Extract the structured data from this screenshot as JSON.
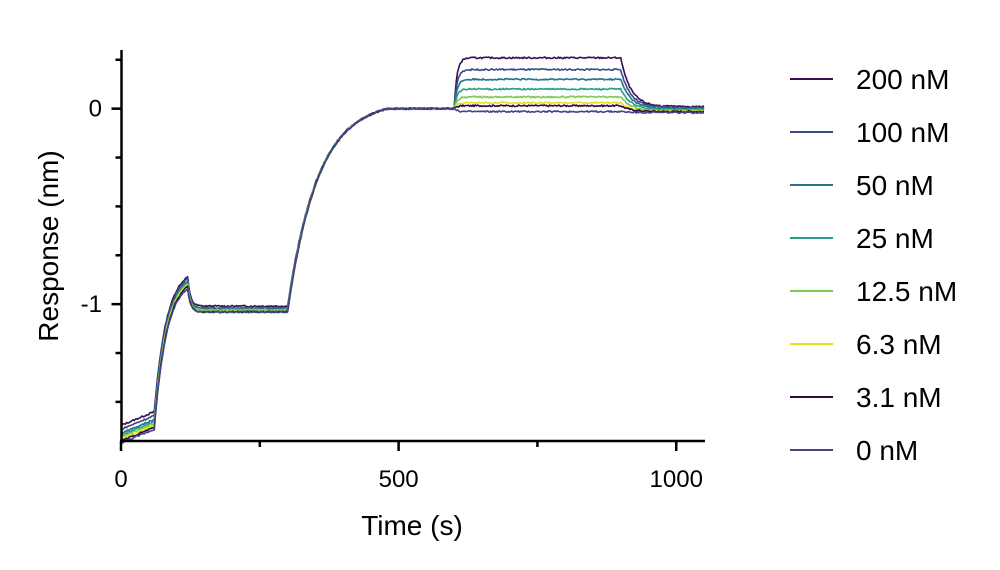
{
  "chart_data": {
    "type": "line",
    "title": "",
    "xlabel": "Time (s)",
    "ylabel": "Response  (nm)",
    "xlim": [
      0,
      1050
    ],
    "ylim": [
      -1.7,
      0.3
    ],
    "x_ticks": [
      0,
      500,
      1000
    ],
    "x_tick_labels": [
      "0",
      "500",
      "1000"
    ],
    "y_ticks": [
      0,
      -1
    ],
    "y_tick_labels": [
      "0",
      "-1"
    ],
    "legend_position": "right",
    "phases_s": [
      0,
      60,
      120,
      300,
      480,
      600,
      900,
      1050
    ],
    "series": [
      {
        "name": "200 nM",
        "color": "#3b0f4f",
        "start": -1.62,
        "peak": -0.86,
        "plateau": -1.01,
        "assoc_level": 0.26,
        "dissoc_end": 0.01
      },
      {
        "name": "100 nM",
        "color": "#3a4a8c",
        "start": -1.64,
        "peak": -0.87,
        "plateau": -1.02,
        "assoc_level": 0.2,
        "dissoc_end": 0.005
      },
      {
        "name": "50 nM",
        "color": "#27708e",
        "start": -1.66,
        "peak": -0.88,
        "plateau": -1.02,
        "assoc_level": 0.15,
        "dissoc_end": 0.0
      },
      {
        "name": "25 nM",
        "color": "#23a089",
        "start": -1.67,
        "peak": -0.89,
        "plateau": -1.03,
        "assoc_level": 0.1,
        "dissoc_end": -0.005
      },
      {
        "name": "12.5 nM",
        "color": "#7ec850",
        "start": -1.68,
        "peak": -0.9,
        "plateau": -1.03,
        "assoc_level": 0.06,
        "dissoc_end": -0.01
      },
      {
        "name": "6.3 nM",
        "color": "#e3e418",
        "start": -1.69,
        "peak": -0.9,
        "plateau": -1.04,
        "assoc_level": 0.03,
        "dissoc_end": -0.015
      },
      {
        "name": "3.1 nM",
        "color": "#2e0a40",
        "start": -1.7,
        "peak": -0.91,
        "plateau": -1.04,
        "assoc_level": 0.015,
        "dissoc_end": -0.015
      },
      {
        "name": "0 nM",
        "color": "#414487",
        "start": -1.71,
        "peak": -0.92,
        "plateau": -1.04,
        "assoc_level": -0.015,
        "dissoc_end": -0.02
      }
    ]
  }
}
